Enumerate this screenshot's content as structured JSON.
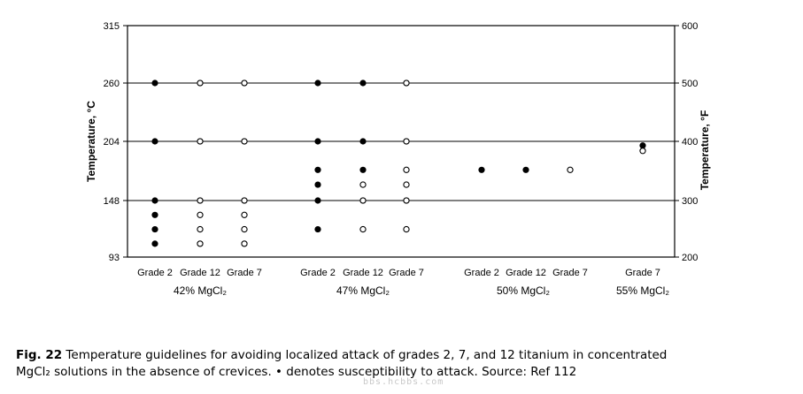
{
  "chart_data": {
    "type": "scatter",
    "ylabel_left": "Temperature, °C",
    "ylabel_right": "Temperature, °F",
    "ylim_c": [
      93,
      315
    ],
    "yticks_c": [
      "315",
      "260",
      "204",
      "148",
      "93"
    ],
    "yticks_f": [
      "600",
      "500",
      "400",
      "300",
      "200"
    ],
    "grid": "horizontal lines at 260, 204 and 148 °C",
    "marker_legend": "• (filled) = susceptible to attack; ○ (open) = not susceptible",
    "groups": [
      {
        "label": "42% MgCl₂",
        "categories": [
          {
            "name": "Grade 2",
            "filled": [
              260,
              204,
              148,
              134,
              120,
              106
            ],
            "open": []
          },
          {
            "name": "Grade 12",
            "filled": [],
            "open": [
              260,
              204,
              148,
              134,
              120,
              106
            ]
          },
          {
            "name": "Grade 7",
            "filled": [],
            "open": [
              260,
              204,
              148,
              134,
              120,
              106
            ]
          }
        ]
      },
      {
        "label": "47% MgCl₂",
        "categories": [
          {
            "name": "Grade 2",
            "filled": [
              260,
              204,
              177,
              163,
              148,
              120
            ],
            "open": []
          },
          {
            "name": "Grade 12",
            "filled": [
              260,
              204,
              177
            ],
            "open": [
              163,
              148,
              120
            ]
          },
          {
            "name": "Grade 7",
            "filled": [],
            "open": [
              260,
              204,
              177,
              163,
              148,
              120
            ]
          }
        ]
      },
      {
        "label": "50% MgCl₂",
        "categories": [
          {
            "name": "Grade 2",
            "filled": [
              177
            ],
            "open": []
          },
          {
            "name": "Grade 12",
            "filled": [
              177
            ],
            "open": []
          },
          {
            "name": "Grade 7",
            "filled": [],
            "open": [
              177
            ]
          }
        ]
      },
      {
        "label": "55% MgCl₂",
        "categories": [
          {
            "name": "Grade 7",
            "filled": [
              200
            ],
            "open": [
              195
            ]
          }
        ]
      }
    ]
  },
  "caption": {
    "fig_label": "Fig. 22",
    "line1": " Temperature guidelines for avoiding localized attack of grades 2, 7, and 12 titanium in concentrated",
    "line2": "MgCl₂ solutions in the absence of crevices. • denotes susceptibility to attack. Source: Ref 112"
  },
  "watermark": "bbs.hcbbs.com"
}
